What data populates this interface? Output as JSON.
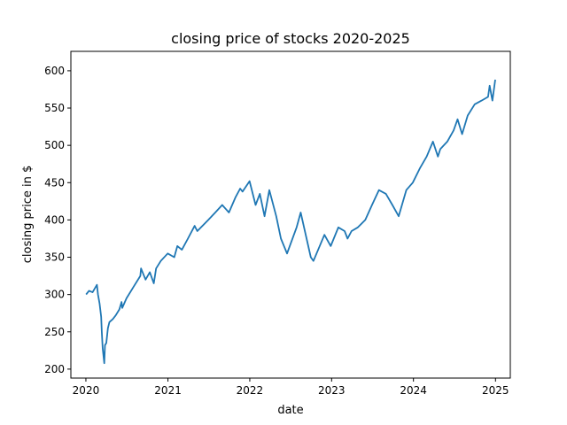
{
  "chart_data": {
    "type": "line",
    "title": "closing price of stocks 2020-2025",
    "xlabel": "date",
    "ylabel": "closing price in $",
    "xlim": [
      "2019-10-26",
      "2025-03-08"
    ],
    "ylim": [
      188,
      626
    ],
    "x_ticks": [
      "2020",
      "2021",
      "2022",
      "2023",
      "2024",
      "2025"
    ],
    "y_ticks": [
      200,
      250,
      300,
      350,
      400,
      450,
      500,
      550,
      600
    ],
    "grid": false,
    "line_color": "#1f77b4",
    "series": [
      {
        "x": [
          "2020-01-02",
          "2020-01-15",
          "2020-01-31",
          "2020-02-19",
          "2020-02-24",
          "2020-03-02",
          "2020-03-09",
          "2020-03-12",
          "2020-03-16",
          "2020-03-23",
          "2020-03-26",
          "2020-04-01",
          "2020-04-08",
          "2020-04-15",
          "2020-04-30",
          "2020-05-13",
          "2020-05-29",
          "2020-06-08",
          "2020-06-11",
          "2020-06-30",
          "2020-07-31",
          "2020-08-31",
          "2020-09-03",
          "2020-09-23",
          "2020-10-12",
          "2020-10-30",
          "2020-11-09",
          "2020-11-30",
          "2020-12-31",
          "2021-01-29",
          "2021-02-12",
          "2021-03-04",
          "2021-03-31",
          "2021-04-30",
          "2021-05-12",
          "2021-06-30",
          "2021-07-31",
          "2021-08-31",
          "2021-09-30",
          "2021-10-29",
          "2021-11-19",
          "2021-11-30",
          "2021-12-31",
          "2022-01-27",
          "2022-02-15",
          "2022-03-08",
          "2022-03-29",
          "2022-04-29",
          "2022-05-20",
          "2022-06-16",
          "2022-07-29",
          "2022-08-16",
          "2022-09-30",
          "2022-10-12",
          "2022-11-30",
          "2022-12-28",
          "2023-01-31",
          "2023-02-28",
          "2023-03-13",
          "2023-03-31",
          "2023-04-28",
          "2023-05-31",
          "2023-06-30",
          "2023-07-31",
          "2023-08-31",
          "2023-09-29",
          "2023-10-27",
          "2023-11-30",
          "2023-12-29",
          "2024-01-31",
          "2024-02-29",
          "2024-03-28",
          "2024-04-19",
          "2024-04-30",
          "2024-05-31",
          "2024-06-28",
          "2024-07-16",
          "2024-08-05",
          "2024-08-30",
          "2024-09-30",
          "2024-10-31",
          "2024-11-29",
          "2024-12-06",
          "2024-12-18",
          "2024-12-31"
        ],
        "values": [
          300,
          305,
          303,
          313,
          300,
          288,
          270,
          250,
          228,
          208,
          232,
          235,
          255,
          263,
          267,
          272,
          280,
          290,
          282,
          295,
          310,
          325,
          335,
          320,
          330,
          315,
          335,
          345,
          355,
          350,
          365,
          360,
          375,
          392,
          385,
          400,
          410,
          420,
          410,
          430,
          442,
          438,
          452,
          420,
          435,
          405,
          440,
          405,
          375,
          355,
          390,
          410,
          350,
          345,
          380,
          365,
          390,
          385,
          375,
          385,
          390,
          400,
          420,
          440,
          435,
          420,
          405,
          440,
          450,
          470,
          485,
          505,
          485,
          495,
          505,
          520,
          535,
          515,
          540,
          555,
          560,
          565,
          580,
          560,
          588
        ]
      }
    ]
  }
}
